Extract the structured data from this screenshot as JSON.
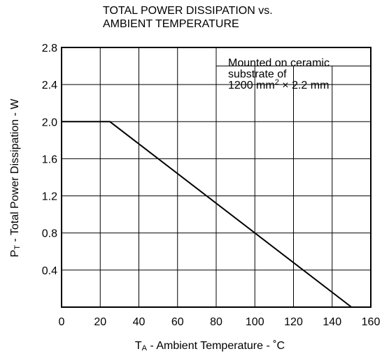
{
  "chart_data": {
    "type": "line",
    "title": [
      "TOTAL POWER DISSIPATION vs.",
      "AMBIENT TEMPERATURE"
    ],
    "xlabel": {
      "main": "T",
      "sub": "A",
      "rest": " - Ambient Temperature - ˚C"
    },
    "ylabel": {
      "main": "P",
      "sub": "T",
      "rest": " - Total Power Dissipation - W"
    },
    "annotation": {
      "lines": [
        "Mounted on ceramic",
        "substrate of"
      ],
      "last": "1200 mm",
      "sup": "2",
      "tail": " × 2.2 mm"
    },
    "x": [
      0,
      25,
      150
    ],
    "series": [
      {
        "color": "#000000",
        "values": [
          2,
          2,
          0
        ]
      }
    ],
    "xlim": [
      0,
      160
    ],
    "xticks": [
      0,
      20,
      40,
      60,
      80,
      100,
      120,
      140,
      160
    ],
    "ylim": [
      0,
      2.8
    ],
    "yticks": [
      {
        "value": 0.4,
        "label": "0.4"
      },
      {
        "value": 0.8,
        "label": "0.8"
      },
      {
        "value": 1.2,
        "label": "1.2"
      },
      {
        "value": 1.6,
        "label": "1.6"
      },
      {
        "value": 2,
        "label": "2.0"
      },
      {
        "value": 2.4,
        "label": "2.4"
      },
      {
        "value": 2.8,
        "label": "2.8"
      }
    ],
    "grid": true
  }
}
